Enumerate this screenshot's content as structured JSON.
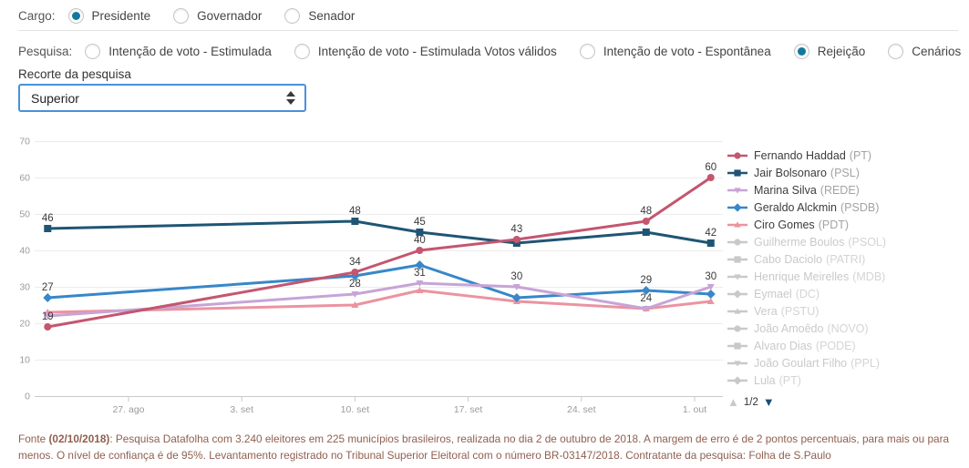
{
  "controls": {
    "cargo": {
      "label": "Cargo:",
      "options": [
        "Presidente",
        "Governador",
        "Senador"
      ],
      "selected": 0
    },
    "pesquisa": {
      "label": "Pesquisa:",
      "options": [
        "Intenção de voto - Estimulada",
        "Intenção de voto - Estimulada Votos válidos",
        "Intenção de voto - Espontânea",
        "Rejeição",
        "Cenários"
      ],
      "selected": 3
    },
    "recorte": {
      "label": "Recorte da pesquisa",
      "value": "Superior"
    }
  },
  "chart_data": {
    "type": "line",
    "title": "",
    "xlabel": "",
    "ylabel": "",
    "ylim": [
      0,
      70
    ],
    "ytick_step": 10,
    "grid": true,
    "legend_position": "right",
    "xticks": [
      {
        "day": 7,
        "label": "27. ago"
      },
      {
        "day": 14,
        "label": "3. set"
      },
      {
        "day": 21,
        "label": "10. set"
      },
      {
        "day": 28,
        "label": "17. set"
      },
      {
        "day": 35,
        "label": "24. set"
      },
      {
        "day": 42,
        "label": "1. out"
      }
    ],
    "x_days": [
      2,
      21,
      25,
      31,
      39,
      43
    ],
    "series": [
      {
        "name": "Fernando Haddad",
        "party": "(PT)",
        "color": "#c4566f",
        "symbol": "circle",
        "values": [
          19,
          34,
          40,
          43,
          48,
          60
        ],
        "show_label": [
          1,
          1,
          1,
          1,
          1,
          1
        ]
      },
      {
        "name": "Jair Bolsonaro",
        "party": "(PSL)",
        "color": "#1f5574",
        "symbol": "square",
        "values": [
          46,
          48,
          45,
          42,
          45,
          42
        ],
        "show_label": [
          1,
          1,
          1,
          0,
          0,
          1
        ]
      },
      {
        "name": "Marina Silva",
        "party": "(REDE)",
        "color": "#c7a4d6",
        "symbol": "triangle-down",
        "values": [
          22,
          28,
          31,
          30,
          24,
          30
        ],
        "show_label": [
          0,
          1,
          1,
          1,
          1,
          1
        ]
      },
      {
        "name": "Geraldo Alckmin",
        "party": "(PSDB)",
        "color": "#3787c9",
        "symbol": "diamond",
        "values": [
          27,
          33,
          36,
          27,
          29,
          28
        ],
        "show_label": [
          1,
          0,
          0,
          0,
          1,
          0
        ]
      },
      {
        "name": "Ciro Gomes",
        "party": "(PDT)",
        "color": "#ec93a0",
        "symbol": "triangle",
        "values": [
          23,
          25,
          29,
          26,
          24,
          26
        ],
        "show_label": [
          0,
          0,
          0,
          0,
          0,
          0
        ]
      }
    ],
    "inactive_legend": [
      {
        "name": "Guilherme Boulos",
        "party": "(PSOL)"
      },
      {
        "name": "Cabo Daciolo",
        "party": "(PATRI)"
      },
      {
        "name": "Henrique Meirelles",
        "party": "(MDB)"
      },
      {
        "name": "Eymael",
        "party": "(DC)"
      },
      {
        "name": "Vera",
        "party": "(PSTU)"
      },
      {
        "name": "João Amoêdo",
        "party": "(NOVO)"
      },
      {
        "name": "Alvaro Dias",
        "party": "(PODE)"
      },
      {
        "name": "João Goulart Filho",
        "party": "(PPL)"
      },
      {
        "name": "Lula",
        "party": "(PT)"
      }
    ],
    "legend_pagination": "1/2"
  },
  "colors": {
    "radio_selected": "#11799e",
    "select_border": "#4a90d9",
    "grid_line": "#ececec",
    "axis_line": "#c9c9c9",
    "axis_text": "#9b9b9b",
    "data_label": "#3a3a3a",
    "inactive_legend": "#c9c9c9",
    "footer_text": "#8f5f4f"
  },
  "footer": {
    "prefix": "Fonte ",
    "date": "(02/10/2018)",
    "rest": ": Pesquisa Datafolha com 3.240 eleitores em 225 municípios brasileiros, realizada no dia 2 de outubro de 2018. A margem de erro é de 2 pontos percentuais, para mais ou para menos. O nível de confiança é de 95%. Levantamento registrado no Tribunal Superior Eleitoral com o número BR-03147/2018. Contratante da pesquisa: Folha de S.Paulo"
  }
}
